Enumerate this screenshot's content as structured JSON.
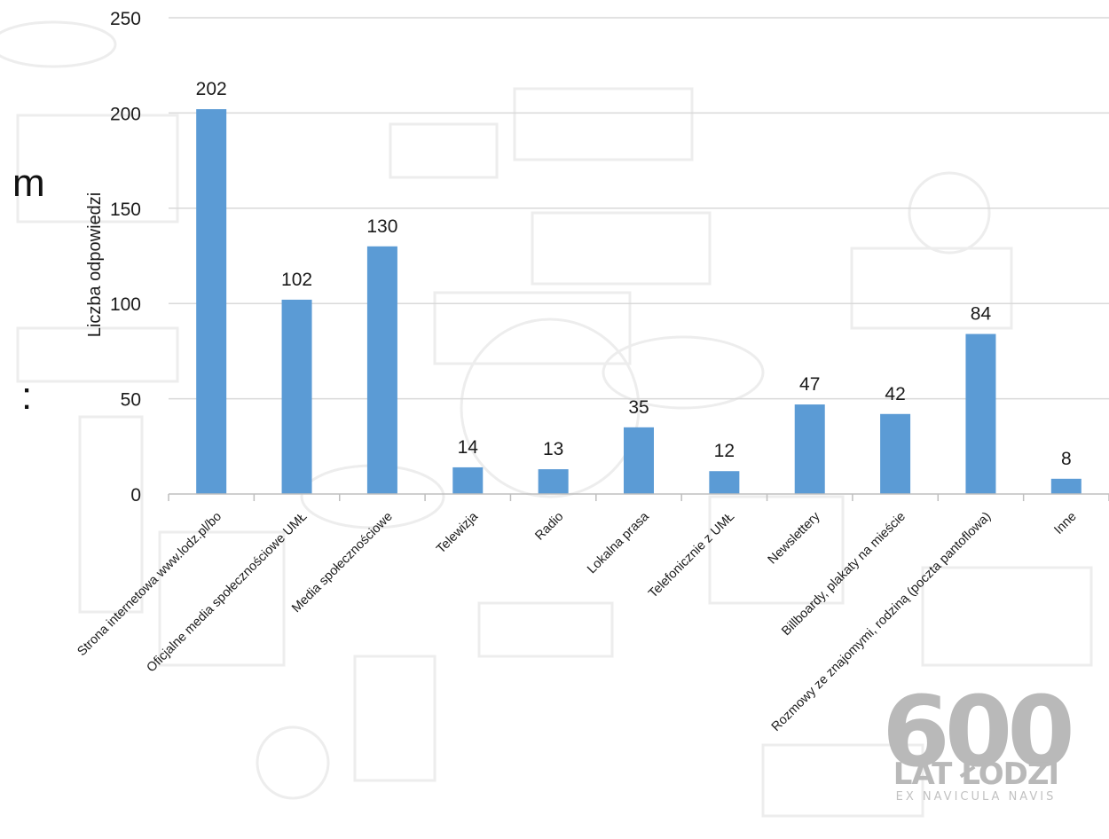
{
  "slide_fragments": {
    "left_letter": "m",
    "left_colon": ":"
  },
  "logo": {
    "number": "600",
    "line1": "LAT ŁODZI",
    "motto": "EX NAVICULA NAVIS"
  },
  "colors": {
    "bar": "#5b9bd5",
    "grid": "#d9d9d9",
    "text": "#1a1a1a",
    "background_pattern": "#ededed"
  },
  "chart_data": {
    "type": "bar",
    "title": "",
    "xlabel": "",
    "ylabel": "Liczba odpowiedzi",
    "ylim": [
      0,
      250
    ],
    "yticks": [
      0,
      50,
      100,
      150,
      200,
      250
    ],
    "grid": true,
    "categories": [
      "Strona internetowa www.lodz.pl/bo",
      "Oficjalne media społecznościowe UMŁ",
      "Media społecznościowe",
      "Telewizja",
      "Radio",
      "Lokalna prasa",
      "Telefonicznie z UMŁ",
      "Newslettery",
      "Billboardy, plakaty na mieście",
      "Rozmowy ze znajomymi, rodziną (poczta pantoflowa)",
      "Inne"
    ],
    "values": [
      202,
      102,
      130,
      14,
      13,
      35,
      12,
      47,
      42,
      84,
      8
    ]
  }
}
